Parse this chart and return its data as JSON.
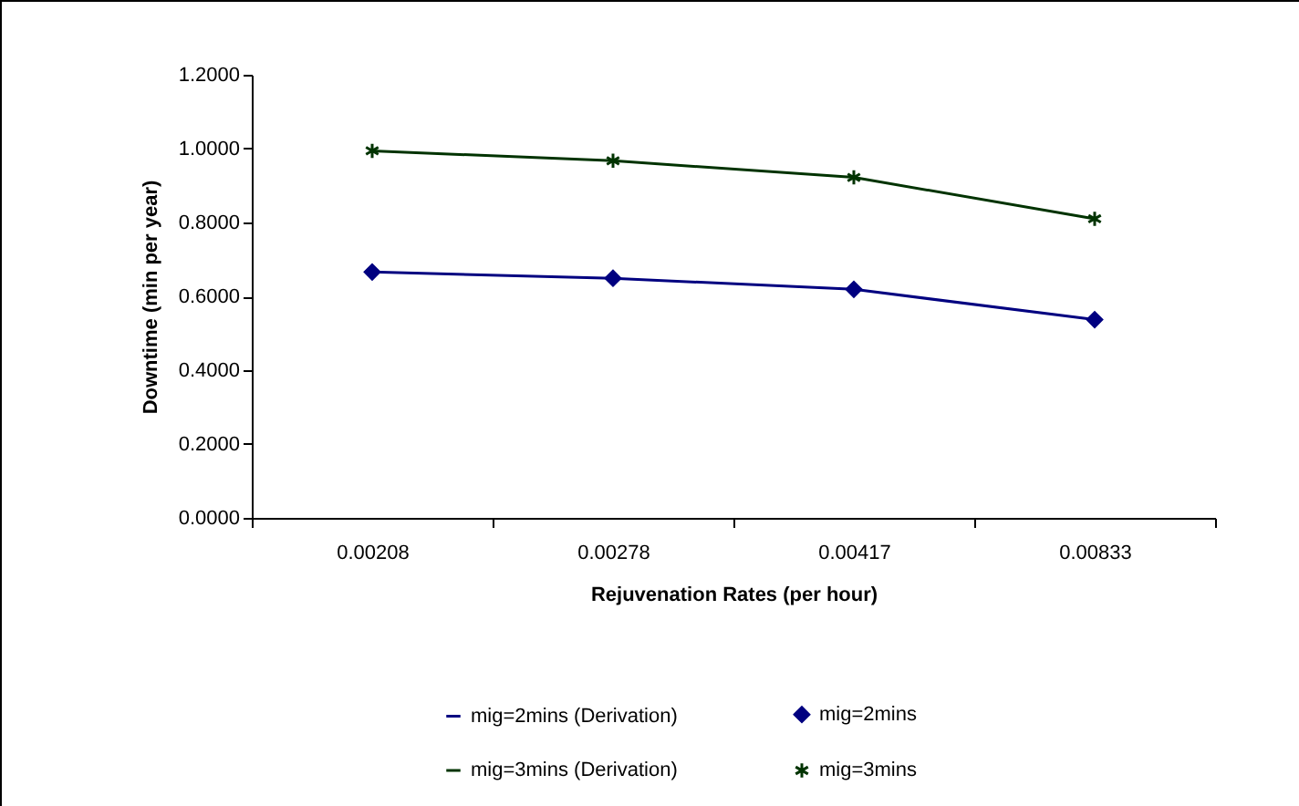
{
  "chart_data": {
    "type": "line",
    "xlabel": "Rejuvenation Rates (per hour)",
    "ylabel": "Downtime (min per year)",
    "categories": [
      "0.00208",
      "0.00278",
      "0.00417",
      "0.00833"
    ],
    "series": [
      {
        "name": "mig=2mins (Derivation)",
        "marker": "none",
        "color": "#000080",
        "values": [
          0.666,
          0.649,
          0.619,
          0.537
        ]
      },
      {
        "name": "mig=2mins",
        "type": "scatter",
        "marker": "diamond",
        "color": "#000080",
        "values": [
          0.666,
          0.649,
          0.619,
          0.537
        ]
      },
      {
        "name": "mig=3mins (Derivation)",
        "marker": "none",
        "color": "#003300",
        "values": [
          0.994,
          0.967,
          0.922,
          0.81
        ]
      },
      {
        "name": "mig=3mins",
        "type": "scatter",
        "marker": "cross",
        "color": "#003300",
        "values": [
          0.994,
          0.967,
          0.922,
          0.81
        ]
      }
    ],
    "ylim": [
      0,
      1.2
    ],
    "yticks": [
      {
        "value": 0,
        "label": "0.0000"
      },
      {
        "value": 0.2,
        "label": "0.2000"
      },
      {
        "value": 0.4,
        "label": "0.4000"
      },
      {
        "value": 0.6,
        "label": "0.6000"
      },
      {
        "value": 0.8,
        "label": "0.8000"
      },
      {
        "value": 1.0,
        "label": "1.0000"
      },
      {
        "value": 1.2,
        "label": "1.2000"
      }
    ],
    "legend": "bottom",
    "grid": false
  }
}
